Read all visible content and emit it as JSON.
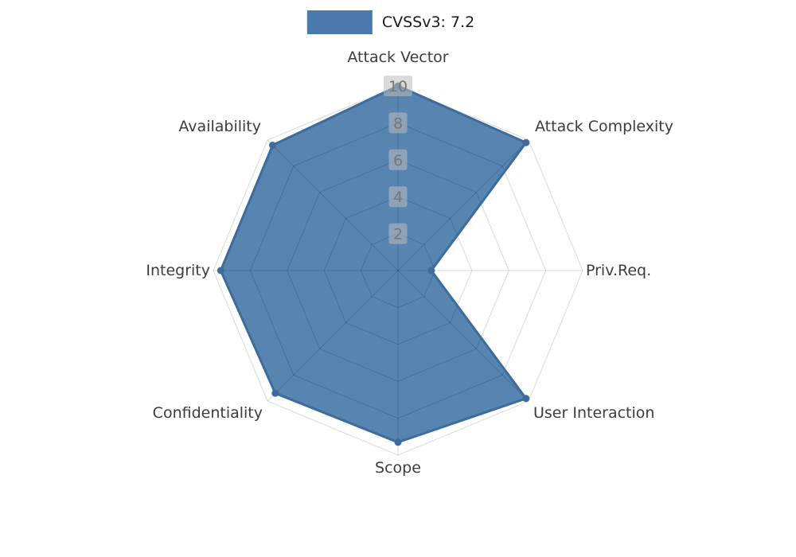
{
  "chart": {
    "background": "#ffffff"
  },
  "legend": {
    "label": "CVSSv3: 7.2"
  },
  "chart_data": {
    "type": "radar",
    "title": "CVSSv3: 7.2",
    "categories": [
      "Attack Vector",
      "Attack Complexity",
      "Priv.Req.",
      "User Interaction",
      "Scope",
      "Confidentiality",
      "Integrity",
      "Availability"
    ],
    "series": [
      {
        "name": "CVSSv3: 7.2",
        "values": [
          10,
          9.8,
          1.8,
          9.8,
          9.3,
          9.4,
          9.6,
          9.6
        ]
      }
    ],
    "rlim": [
      0,
      10
    ],
    "ticks": [
      2,
      4,
      6,
      8,
      10
    ],
    "grid": "spider-web",
    "legend_position": "top-center",
    "colors": {
      "series_fill": "#4a7aab",
      "series_stroke": "#3d6c9b",
      "grid_line": "rgba(0,0,0,0.15)",
      "axis_label": "#3c3c3c",
      "tick_text": "#767676",
      "tick_bg": "rgba(190,190,190,0.55)",
      "legend_text": "#1a1a1a"
    }
  }
}
